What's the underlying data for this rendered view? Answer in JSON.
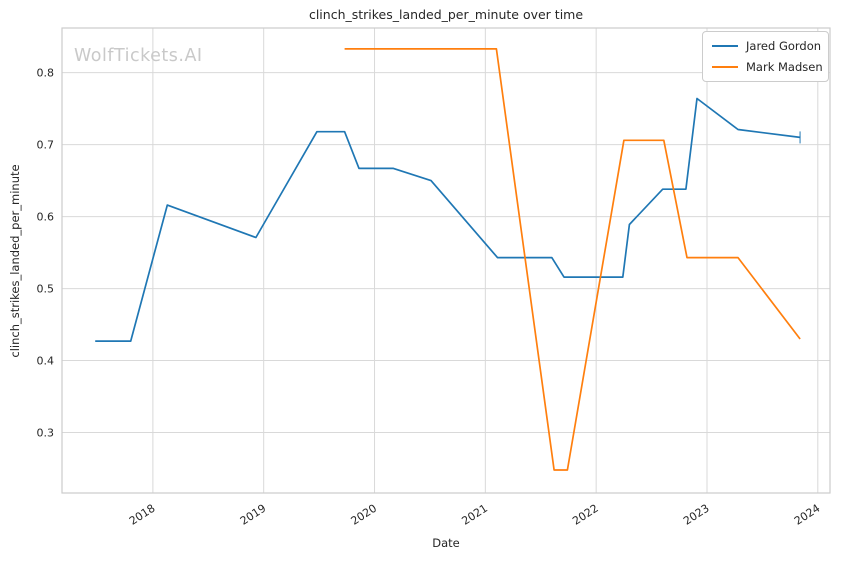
{
  "title": "clinch_strikes_landed_per_minute over time",
  "watermark": "WolfTickets.AI",
  "axes": {
    "xlabel": "Date",
    "ylabel": "clinch_strikes_landed_per_minute"
  },
  "legend": {
    "position": "upper right",
    "items": [
      {
        "label": "Jared Gordon",
        "color": "#1f77b4"
      },
      {
        "label": "Mark Madsen",
        "color": "#ff7f0e"
      }
    ]
  },
  "colors": {
    "background": "#ffffff",
    "grid": "#d9d9d9",
    "spine": "#cccccc",
    "text": "#262626",
    "watermark": "#c9c9c9",
    "series_blue": "#1f77b4",
    "series_orange": "#ff7f0e"
  },
  "chart_data": {
    "type": "line",
    "title": "clinch_strikes_landed_per_minute over time",
    "xlabel": "Date",
    "ylabel": "clinch_strikes_landed_per_minute",
    "x_unit": "decimal_year",
    "xlim": [
      2017.18,
      2024.11
    ],
    "ylim": [
      0.216,
      0.862
    ],
    "x_ticks": [
      2018,
      2019,
      2020,
      2021,
      2022,
      2023,
      2024
    ],
    "x_tick_rotation_deg": -33,
    "y_ticks": [
      0.3,
      0.4,
      0.5,
      0.6,
      0.7,
      0.8
    ],
    "grid": true,
    "legend_position": "upper right",
    "series": [
      {
        "name": "Jared Gordon",
        "color": "#1f77b4",
        "end_marker": true,
        "points": [
          [
            2017.48,
            0.427
          ],
          [
            2017.8,
            0.427
          ],
          [
            2018.13,
            0.616
          ],
          [
            2018.93,
            0.571
          ],
          [
            2019.48,
            0.718
          ],
          [
            2019.73,
            0.718
          ],
          [
            2019.86,
            0.667
          ],
          [
            2020.17,
            0.667
          ],
          [
            2020.51,
            0.65
          ],
          [
            2021.11,
            0.543
          ],
          [
            2021.6,
            0.543
          ],
          [
            2021.71,
            0.516
          ],
          [
            2022.24,
            0.516
          ],
          [
            2022.3,
            0.589
          ],
          [
            2022.6,
            0.638
          ],
          [
            2022.81,
            0.638
          ],
          [
            2022.91,
            0.764
          ],
          [
            2023.28,
            0.721
          ],
          [
            2023.84,
            0.71
          ]
        ]
      },
      {
        "name": "Mark Madsen",
        "color": "#ff7f0e",
        "end_marker": false,
        "points": [
          [
            2019.73,
            0.833
          ],
          [
            2021.1,
            0.833
          ],
          [
            2021.62,
            0.248
          ],
          [
            2021.74,
            0.248
          ],
          [
            2022.25,
            0.706
          ],
          [
            2022.61,
            0.706
          ],
          [
            2022.82,
            0.543
          ],
          [
            2023.28,
            0.543
          ],
          [
            2023.84,
            0.43
          ]
        ]
      }
    ]
  }
}
